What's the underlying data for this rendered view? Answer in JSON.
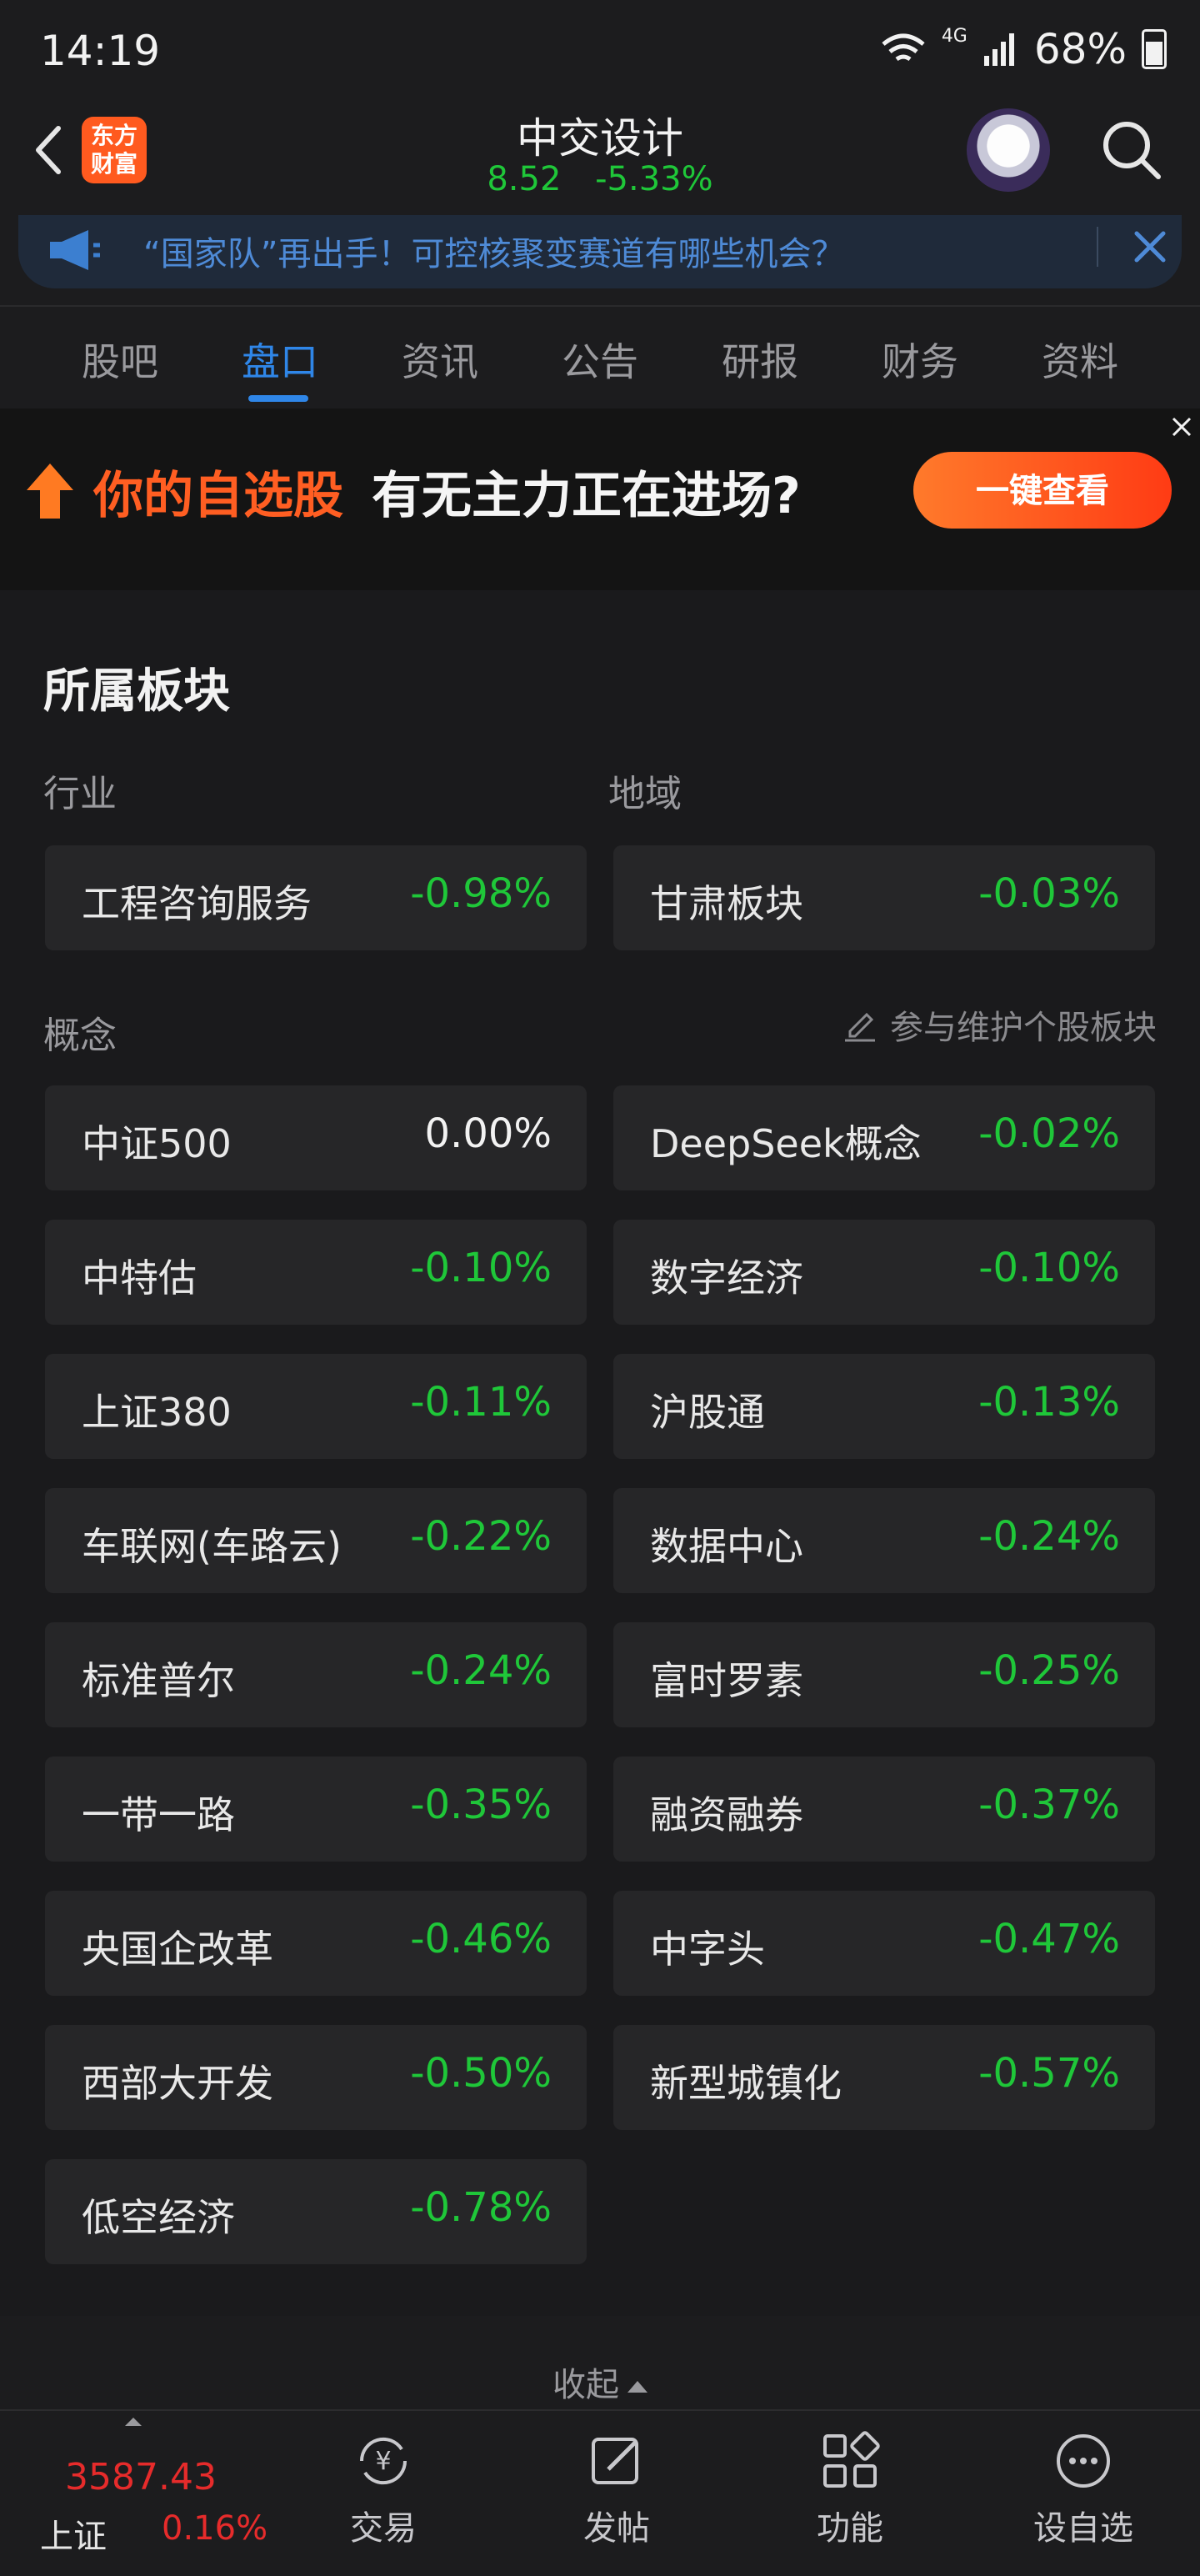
{
  "status": {
    "time": "14:19",
    "network": "4G",
    "battery": "68%"
  },
  "header": {
    "logo_text": "东方\n财富",
    "stock_name": "中交设计",
    "price": "8.52",
    "change_pct": "-5.33%"
  },
  "notice": {
    "text": "“国家队”再出手！可控核聚变赛道有哪些机会？"
  },
  "tabs": [
    "股吧",
    "盘口",
    "资讯",
    "公告",
    "研报",
    "财务",
    "资料"
  ],
  "active_tab": "盘口",
  "ad": {
    "highlight": "你的自选股",
    "text": "有无主力正在进场?",
    "button": "一键查看"
  },
  "sector": {
    "title": "所属板块",
    "industry_label": "行业",
    "region_label": "地域",
    "concept_label": "概念",
    "maintain_link": "参与维护个股板块",
    "industry": {
      "name": "工程咨询服务",
      "pct": "-0.98%"
    },
    "region": {
      "name": "甘肃板块",
      "pct": "-0.03%"
    },
    "concepts": [
      {
        "name": "中证500",
        "pct": "0.00%"
      },
      {
        "name": "DeepSeek概念",
        "pct": "-0.02%"
      },
      {
        "name": "中特估",
        "pct": "-0.10%"
      },
      {
        "name": "数字经济",
        "pct": "-0.10%"
      },
      {
        "name": "上证380",
        "pct": "-0.11%"
      },
      {
        "name": "沪股通",
        "pct": "-0.13%"
      },
      {
        "name": "车联网(车路云)",
        "pct": "-0.22%"
      },
      {
        "name": "数据中心",
        "pct": "-0.24%"
      },
      {
        "name": "标准普尔",
        "pct": "-0.24%"
      },
      {
        "name": "富时罗素",
        "pct": "-0.25%"
      },
      {
        "name": "一带一路",
        "pct": "-0.35%"
      },
      {
        "name": "融资融券",
        "pct": "-0.37%"
      },
      {
        "name": "央国企改革",
        "pct": "-0.46%"
      },
      {
        "name": "中字头",
        "pct": "-0.47%"
      },
      {
        "name": "西部大开发",
        "pct": "-0.50%"
      },
      {
        "name": "新型城镇化",
        "pct": "-0.57%"
      },
      {
        "name": "低空经济",
        "pct": "-0.78%"
      }
    ],
    "collapse_label": "收起"
  },
  "bottom": {
    "index_value": "3587.43",
    "index_name": "上证",
    "index_pct": "0.16%",
    "nav": [
      "交易",
      "发帖",
      "功能",
      "设自选"
    ]
  },
  "colors": {
    "down": "#1fc739",
    "up": "#e62b2b",
    "accent": "#2f86e8",
    "brand": "#ff5a1f"
  }
}
